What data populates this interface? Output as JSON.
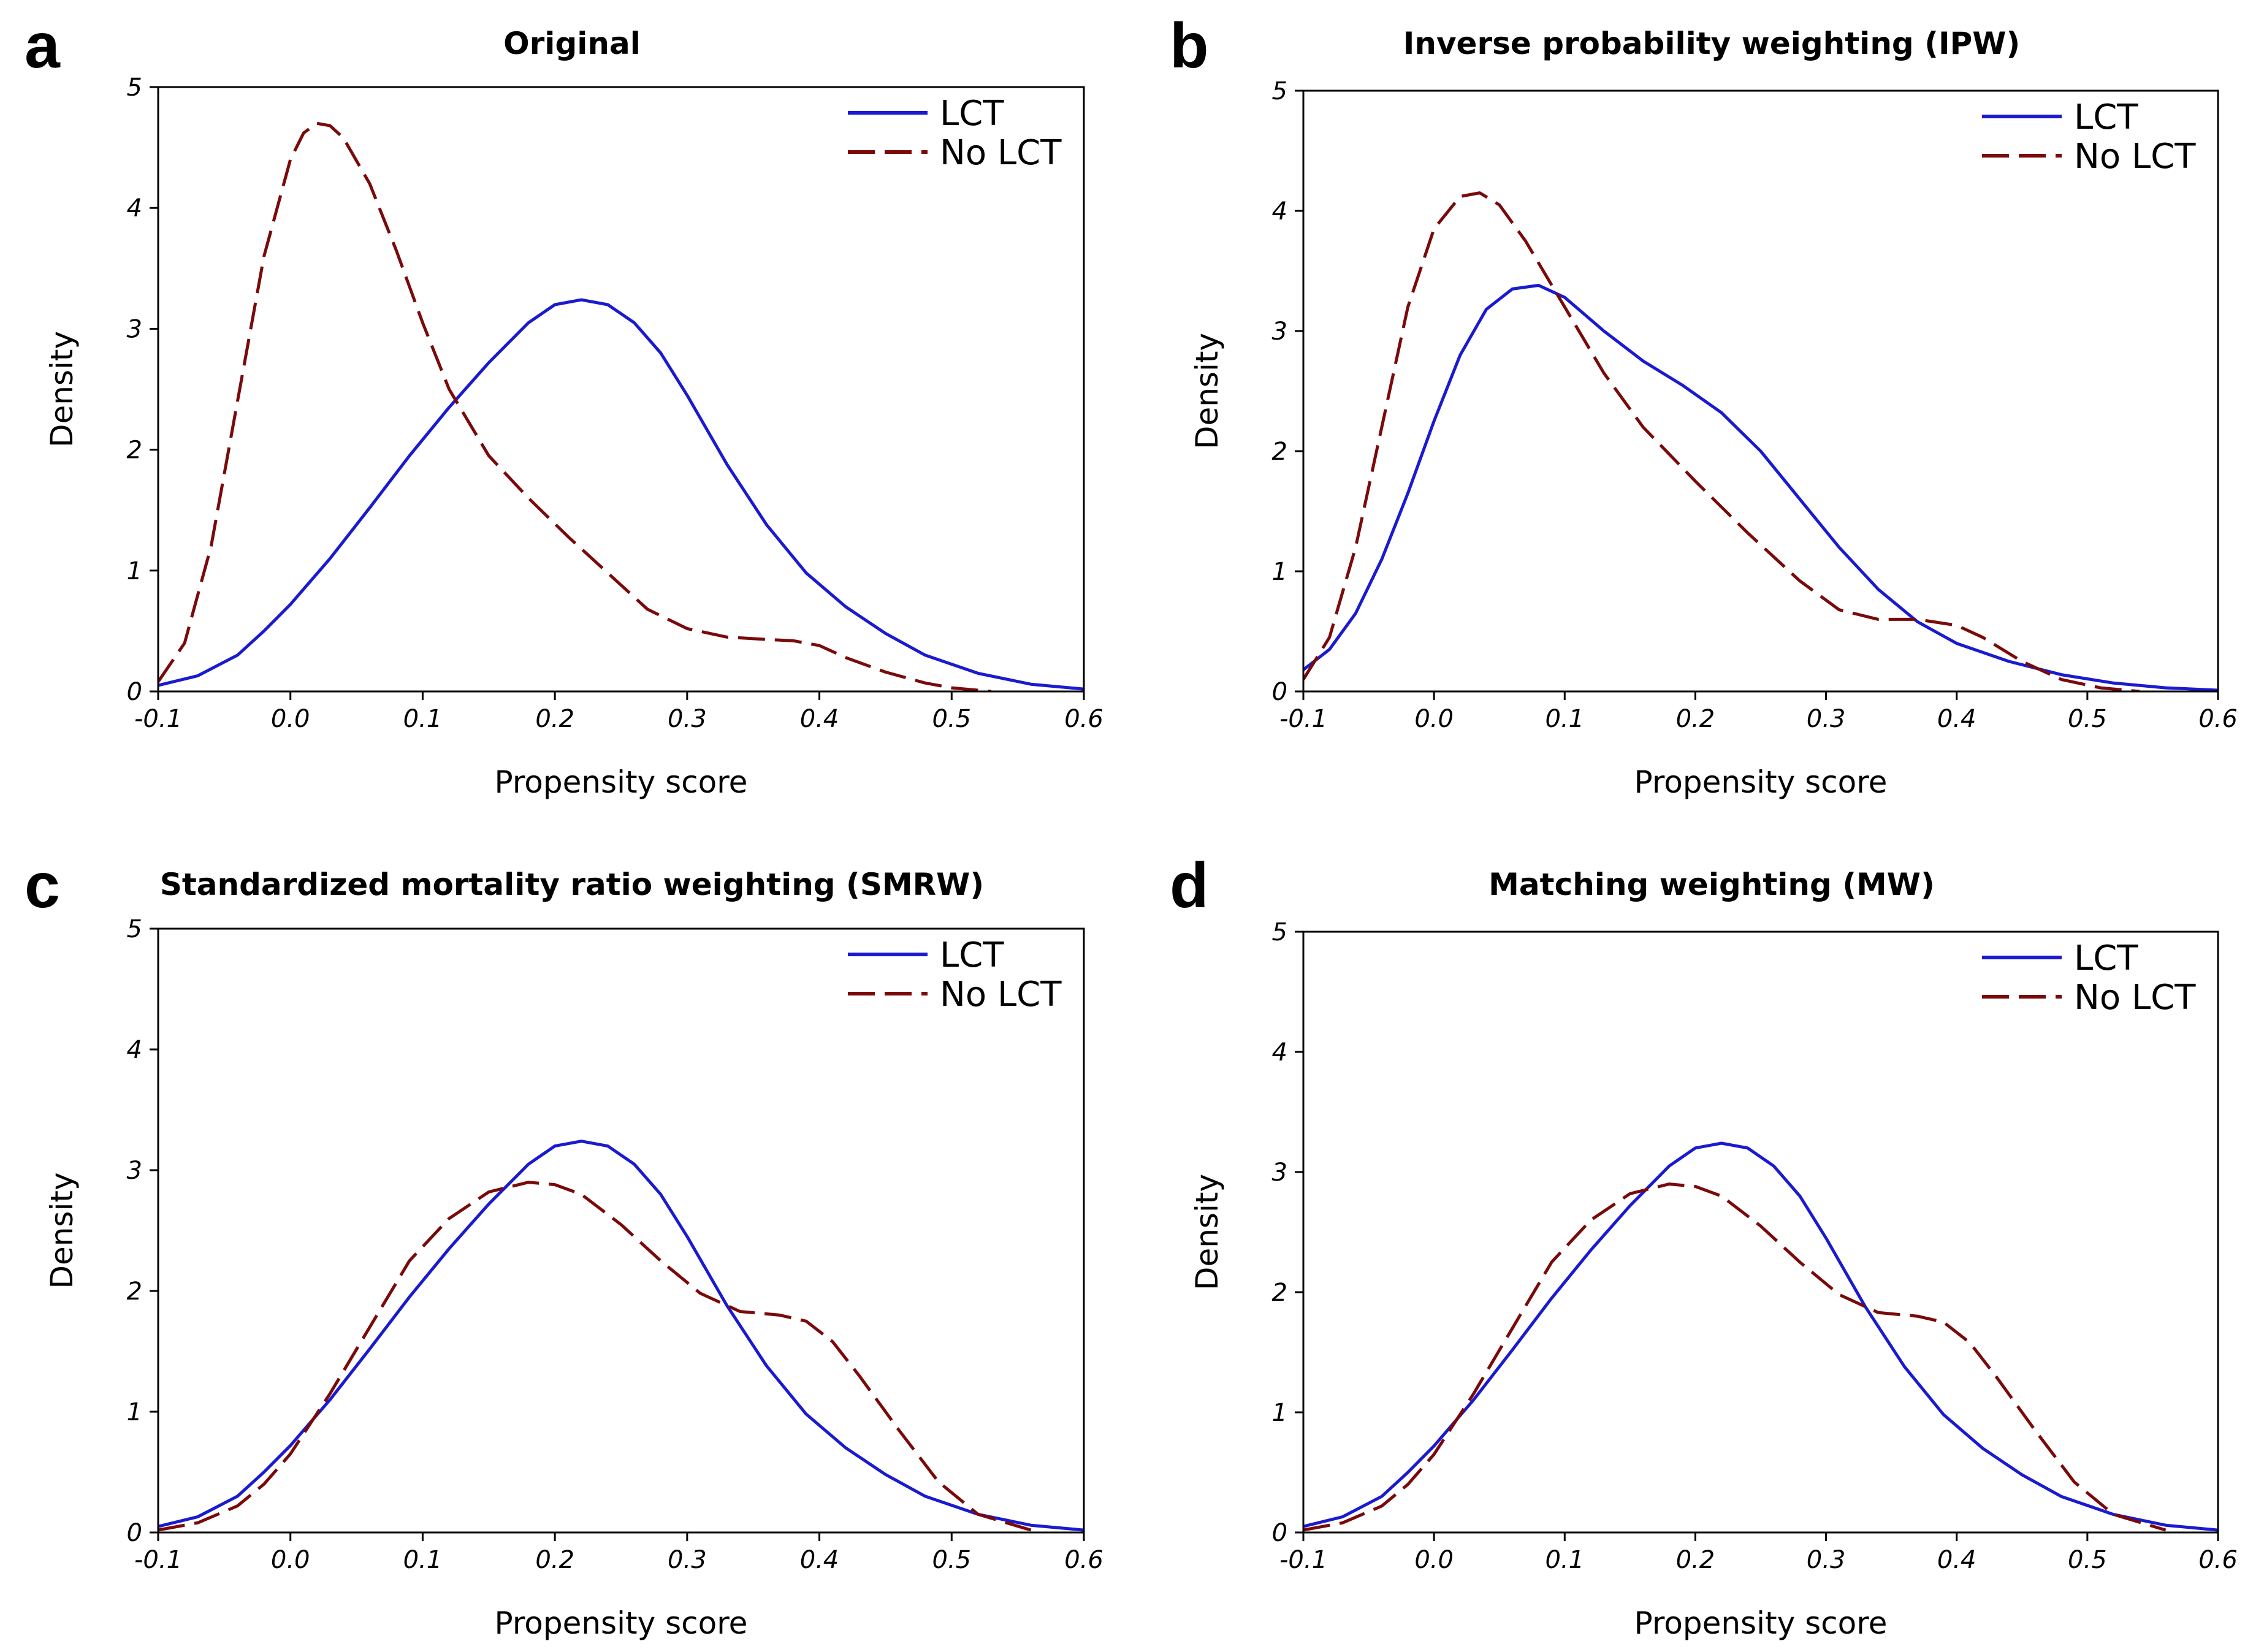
{
  "chart_data": [
    {
      "type": "line",
      "letter": "a",
      "title": "Original",
      "xlabel": "Propensity score",
      "ylabel": "Density",
      "xlim": [
        -0.1,
        0.6
      ],
      "ylim": [
        0,
        5
      ],
      "xticks": [
        -0.1,
        0.0,
        0.1,
        0.2,
        0.3,
        0.4,
        0.5,
        0.6
      ],
      "xtick_labels": [
        "-0.1",
        "0.0",
        "0.1",
        "0.2",
        "0.3",
        "0.4",
        "0.5",
        "0.6"
      ],
      "yticks": [
        0,
        1,
        2,
        3,
        4,
        5
      ],
      "ytick_labels": [
        "0",
        "1",
        "2",
        "3",
        "4",
        "5"
      ],
      "legend_position": "top-right",
      "series": [
        {
          "name": "LCT",
          "color": "#1a1ad0",
          "dash": "solid",
          "x": [
            -0.1,
            -0.07,
            -0.04,
            -0.02,
            0.0,
            0.03,
            0.06,
            0.09,
            0.12,
            0.15,
            0.18,
            0.2,
            0.22,
            0.24,
            0.26,
            0.28,
            0.3,
            0.33,
            0.36,
            0.39,
            0.42,
            0.45,
            0.48,
            0.52,
            0.56,
            0.6
          ],
          "y": [
            0.05,
            0.13,
            0.3,
            0.5,
            0.72,
            1.1,
            1.52,
            1.95,
            2.35,
            2.72,
            3.05,
            3.2,
            3.24,
            3.2,
            3.05,
            2.8,
            2.45,
            1.88,
            1.38,
            0.98,
            0.7,
            0.48,
            0.3,
            0.15,
            0.06,
            0.02
          ]
        },
        {
          "name": "No LCT",
          "color": "#7a0a0a",
          "dash": "dashed",
          "x": [
            -0.1,
            -0.08,
            -0.06,
            -0.04,
            -0.02,
            0.0,
            0.01,
            0.02,
            0.03,
            0.04,
            0.06,
            0.08,
            0.1,
            0.12,
            0.15,
            0.18,
            0.21,
            0.24,
            0.27,
            0.3,
            0.33,
            0.36,
            0.38,
            0.4,
            0.42,
            0.45,
            0.48,
            0.5,
            0.53
          ],
          "y": [
            0.08,
            0.4,
            1.2,
            2.4,
            3.6,
            4.4,
            4.62,
            4.7,
            4.68,
            4.58,
            4.2,
            3.65,
            3.05,
            2.5,
            1.95,
            1.6,
            1.28,
            0.98,
            0.68,
            0.52,
            0.45,
            0.43,
            0.42,
            0.38,
            0.28,
            0.16,
            0.07,
            0.03,
            0.0
          ]
        }
      ]
    },
    {
      "type": "line",
      "letter": "b",
      "title": "Inverse probability weighting (IPW)",
      "xlabel": "Propensity score",
      "ylabel": "Density",
      "xlim": [
        -0.1,
        0.6
      ],
      "ylim": [
        0,
        5
      ],
      "xticks": [
        -0.1,
        0.0,
        0.1,
        0.2,
        0.3,
        0.4,
        0.5,
        0.6
      ],
      "xtick_labels": [
        "-0.1",
        "0.0",
        "0.1",
        "0.2",
        "0.3",
        "0.4",
        "0.5",
        "0.6"
      ],
      "yticks": [
        0,
        1,
        2,
        3,
        4,
        5
      ],
      "ytick_labels": [
        "0",
        "1",
        "2",
        "3",
        "4",
        "5"
      ],
      "legend_position": "top-right",
      "series": [
        {
          "name": "LCT",
          "color": "#1a1ad0",
          "dash": "solid",
          "x": [
            -0.1,
            -0.08,
            -0.06,
            -0.04,
            -0.02,
            0.0,
            0.02,
            0.04,
            0.06,
            0.08,
            0.1,
            0.13,
            0.16,
            0.19,
            0.22,
            0.25,
            0.28,
            0.31,
            0.34,
            0.37,
            0.4,
            0.44,
            0.48,
            0.52,
            0.56,
            0.6
          ],
          "y": [
            0.18,
            0.35,
            0.65,
            1.1,
            1.65,
            2.25,
            2.8,
            3.18,
            3.35,
            3.38,
            3.28,
            3.0,
            2.75,
            2.55,
            2.32,
            2.0,
            1.6,
            1.2,
            0.85,
            0.58,
            0.4,
            0.25,
            0.14,
            0.07,
            0.03,
            0.01
          ]
        },
        {
          "name": "No LCT",
          "color": "#7a0a0a",
          "dash": "dashed",
          "x": [
            -0.1,
            -0.08,
            -0.06,
            -0.04,
            -0.02,
            0.0,
            0.02,
            0.035,
            0.05,
            0.07,
            0.1,
            0.13,
            0.16,
            0.2,
            0.24,
            0.28,
            0.31,
            0.34,
            0.37,
            0.4,
            0.42,
            0.45,
            0.48,
            0.51,
            0.54
          ],
          "y": [
            0.1,
            0.45,
            1.2,
            2.2,
            3.2,
            3.85,
            4.12,
            4.15,
            4.05,
            3.75,
            3.2,
            2.65,
            2.2,
            1.75,
            1.32,
            0.92,
            0.68,
            0.6,
            0.6,
            0.55,
            0.45,
            0.25,
            0.1,
            0.03,
            0.0
          ]
        }
      ]
    },
    {
      "type": "line",
      "letter": "c",
      "title": "Standardized mortality ratio weighting (SMRW)",
      "xlabel": "Propensity score",
      "ylabel": "Density",
      "xlim": [
        -0.1,
        0.6
      ],
      "ylim": [
        0,
        5
      ],
      "xticks": [
        -0.1,
        0.0,
        0.1,
        0.2,
        0.3,
        0.4,
        0.5,
        0.6
      ],
      "xtick_labels": [
        "-0.1",
        "0.0",
        "0.1",
        "0.2",
        "0.3",
        "0.4",
        "0.5",
        "0.6"
      ],
      "yticks": [
        0,
        1,
        2,
        3,
        4,
        5
      ],
      "ytick_labels": [
        "0",
        "1",
        "2",
        "3",
        "4",
        "5"
      ],
      "legend_position": "top-right",
      "series": [
        {
          "name": "LCT",
          "color": "#1a1ad0",
          "dash": "solid",
          "x": [
            -0.1,
            -0.07,
            -0.04,
            -0.02,
            0.0,
            0.03,
            0.06,
            0.09,
            0.12,
            0.15,
            0.18,
            0.2,
            0.22,
            0.24,
            0.26,
            0.28,
            0.3,
            0.33,
            0.36,
            0.39,
            0.42,
            0.45,
            0.48,
            0.52,
            0.56,
            0.6
          ],
          "y": [
            0.05,
            0.13,
            0.3,
            0.5,
            0.72,
            1.1,
            1.52,
            1.95,
            2.35,
            2.72,
            3.05,
            3.2,
            3.24,
            3.2,
            3.05,
            2.8,
            2.45,
            1.88,
            1.38,
            0.98,
            0.7,
            0.48,
            0.3,
            0.15,
            0.06,
            0.02
          ]
        },
        {
          "name": "No LCT",
          "color": "#7a0a0a",
          "dash": "dashed",
          "x": [
            -0.1,
            -0.07,
            -0.04,
            -0.02,
            0.0,
            0.03,
            0.06,
            0.09,
            0.12,
            0.15,
            0.18,
            0.2,
            0.22,
            0.25,
            0.28,
            0.31,
            0.34,
            0.37,
            0.39,
            0.41,
            0.43,
            0.46,
            0.49,
            0.52,
            0.56
          ],
          "y": [
            0.02,
            0.08,
            0.22,
            0.4,
            0.65,
            1.15,
            1.7,
            2.25,
            2.6,
            2.82,
            2.9,
            2.88,
            2.8,
            2.55,
            2.25,
            1.98,
            1.83,
            1.8,
            1.75,
            1.58,
            1.3,
            0.85,
            0.42,
            0.15,
            0.02
          ]
        }
      ]
    },
    {
      "type": "line",
      "letter": "d",
      "title": "Matching weighting (MW)",
      "xlabel": "Propensity score",
      "ylabel": "Density",
      "xlim": [
        -0.1,
        0.6
      ],
      "ylim": [
        0,
        5
      ],
      "xticks": [
        -0.1,
        0.0,
        0.1,
        0.2,
        0.3,
        0.4,
        0.5,
        0.6
      ],
      "xtick_labels": [
        "-0.1",
        "0.0",
        "0.1",
        "0.2",
        "0.3",
        "0.4",
        "0.5",
        "0.6"
      ],
      "yticks": [
        0,
        1,
        2,
        3,
        4,
        5
      ],
      "ytick_labels": [
        "0",
        "1",
        "2",
        "3",
        "4",
        "5"
      ],
      "legend_position": "top-right",
      "series": [
        {
          "name": "LCT",
          "color": "#1a1ad0",
          "dash": "solid",
          "x": [
            -0.1,
            -0.07,
            -0.04,
            -0.02,
            0.0,
            0.03,
            0.06,
            0.09,
            0.12,
            0.15,
            0.18,
            0.2,
            0.22,
            0.24,
            0.26,
            0.28,
            0.3,
            0.33,
            0.36,
            0.39,
            0.42,
            0.45,
            0.48,
            0.52,
            0.56,
            0.6
          ],
          "y": [
            0.05,
            0.13,
            0.3,
            0.5,
            0.72,
            1.1,
            1.52,
            1.95,
            2.35,
            2.72,
            3.05,
            3.2,
            3.24,
            3.2,
            3.05,
            2.8,
            2.45,
            1.88,
            1.38,
            0.98,
            0.7,
            0.48,
            0.3,
            0.15,
            0.06,
            0.02
          ]
        },
        {
          "name": "No LCT",
          "color": "#7a0a0a",
          "dash": "dashed",
          "x": [
            -0.1,
            -0.07,
            -0.04,
            -0.02,
            0.0,
            0.03,
            0.06,
            0.09,
            0.12,
            0.15,
            0.18,
            0.2,
            0.22,
            0.25,
            0.28,
            0.31,
            0.34,
            0.37,
            0.39,
            0.41,
            0.43,
            0.46,
            0.49,
            0.52,
            0.56
          ],
          "y": [
            0.02,
            0.08,
            0.22,
            0.4,
            0.65,
            1.15,
            1.7,
            2.25,
            2.6,
            2.82,
            2.9,
            2.88,
            2.8,
            2.55,
            2.25,
            1.98,
            1.83,
            1.8,
            1.75,
            1.58,
            1.3,
            0.85,
            0.42,
            0.15,
            0.02
          ]
        }
      ]
    }
  ]
}
